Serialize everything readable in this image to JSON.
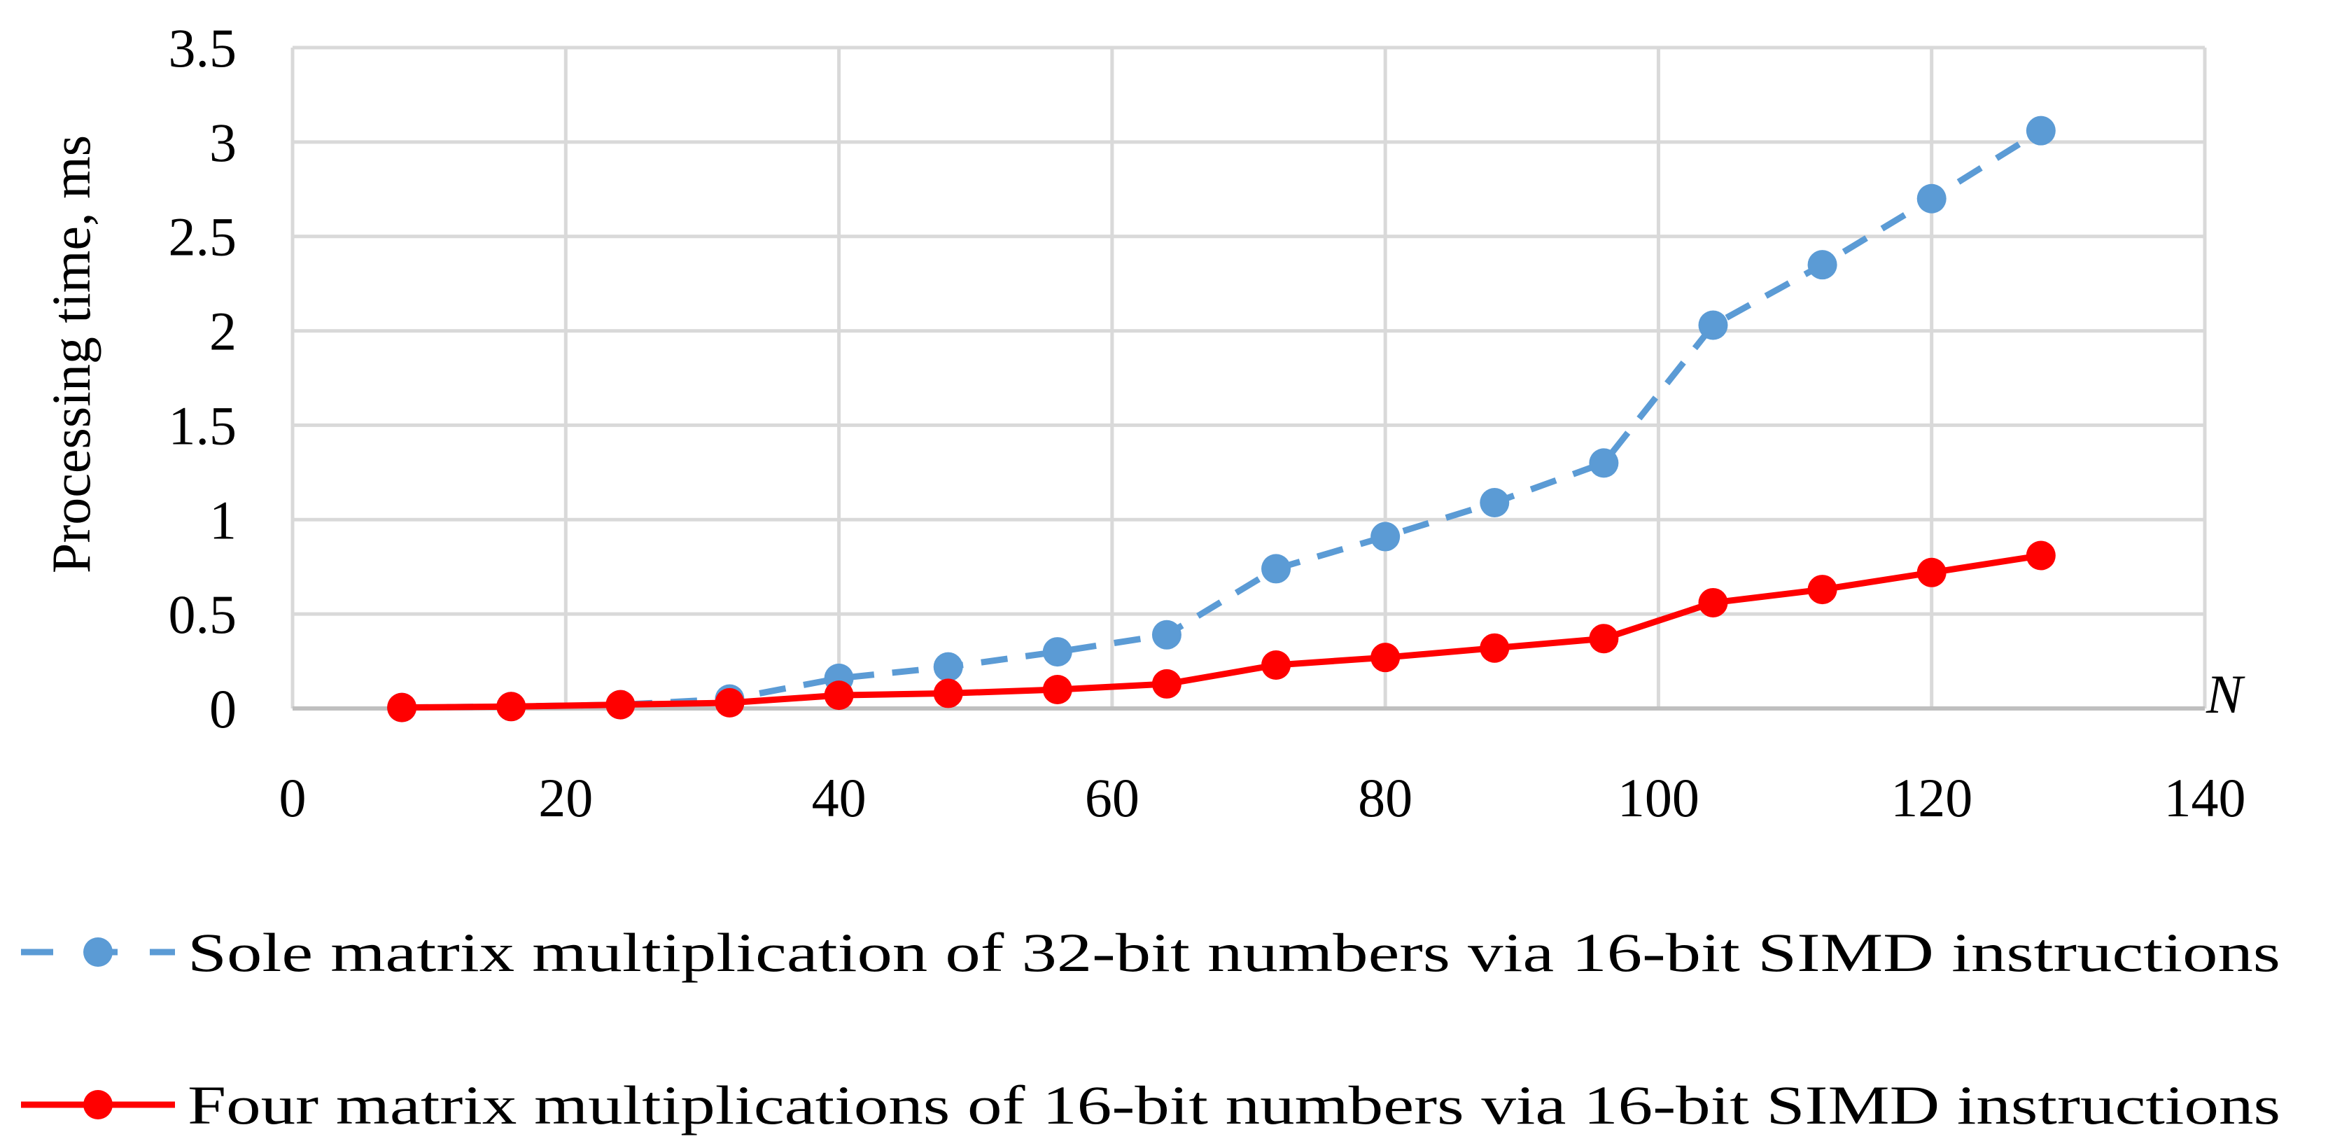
{
  "chart_data": {
    "type": "line",
    "title": "",
    "xlabel": "N",
    "ylabel": "Processing time, ms",
    "xlim": [
      0,
      140
    ],
    "ylim": [
      0,
      3.5
    ],
    "x_ticks": [
      0,
      20,
      40,
      60,
      80,
      100,
      120,
      140
    ],
    "y_ticks": [
      0,
      0.5,
      1,
      1.5,
      2,
      2.5,
      3,
      3.5
    ],
    "x_tick_labels": [
      "0",
      "20",
      "40",
      "60",
      "80",
      "100",
      "120",
      "140"
    ],
    "y_tick_labels": [
      "0",
      "0.5",
      "1",
      "1.5",
      "2",
      "2.5",
      "3",
      "3.5"
    ],
    "grid": true,
    "legend_position": "bottom",
    "x": [
      8,
      16,
      24,
      32,
      40,
      48,
      56,
      64,
      72,
      80,
      88,
      96,
      104,
      112,
      120,
      128
    ],
    "series": [
      {
        "name": "Sole matrix multiplication of 32-bit numbers via 16-bit SIMD instructions",
        "color": "#5b9bd5",
        "line_style": "dashed",
        "values": [
          0.005,
          0.01,
          0.02,
          0.05,
          0.16,
          0.22,
          0.3,
          0.39,
          0.74,
          0.91,
          1.09,
          1.3,
          2.03,
          2.35,
          2.7,
          3.06
        ]
      },
      {
        "name": "Four matrix multiplications of 16-bit numbers via 16-bit SIMD instructions",
        "color": "#ff0000",
        "line_style": "solid",
        "values": [
          0.005,
          0.01,
          0.02,
          0.03,
          0.07,
          0.08,
          0.1,
          0.13,
          0.23,
          0.27,
          0.32,
          0.37,
          0.56,
          0.63,
          0.72,
          0.81
        ]
      }
    ]
  }
}
